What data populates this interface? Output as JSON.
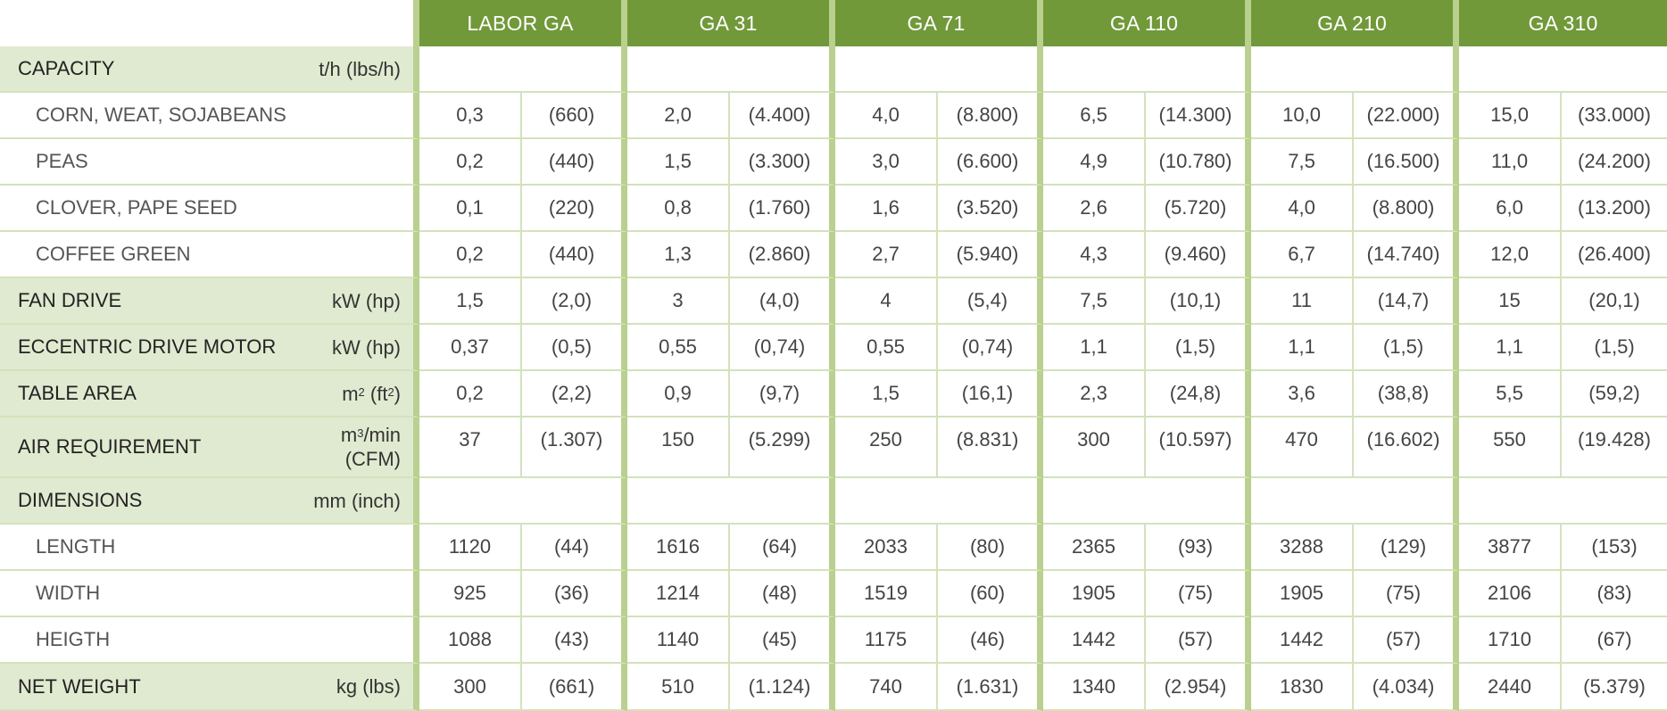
{
  "models": [
    "LABOR GA",
    "GA 31",
    "GA 71",
    "GA 110",
    "GA 210",
    "GA 310"
  ],
  "rows": [
    {
      "kind": "section",
      "label": "CAPACITY",
      "unit": "t/h (lbs/h)",
      "values": []
    },
    {
      "kind": "sub",
      "label": "CORN, WEAT, SOJABEANS",
      "unit": "",
      "values": [
        "0,3",
        "(660)",
        "2,0",
        "(4.400)",
        "4,0",
        "(8.800)",
        "6,5",
        "(14.300)",
        "10,0",
        "(22.000)",
        "15,0",
        "(33.000)"
      ]
    },
    {
      "kind": "sub",
      "label": "PEAS",
      "unit": "",
      "values": [
        "0,2",
        "(440)",
        "1,5",
        "(3.300)",
        "3,0",
        "(6.600)",
        "4,9",
        "(10.780)",
        "7,5",
        "(16.500)",
        "11,0",
        "(24.200)"
      ]
    },
    {
      "kind": "sub",
      "label": "CLOVER, PAPE SEED",
      "unit": "",
      "values": [
        "0,1",
        "(220)",
        "0,8",
        "(1.760)",
        "1,6",
        "(3.520)",
        "2,6",
        "(5.720)",
        "4,0",
        "(8.800)",
        "6,0",
        "(13.200)"
      ]
    },
    {
      "kind": "sub",
      "label": "COFFEE GREEN",
      "unit": "",
      "values": [
        "0,2",
        "(440)",
        "1,3",
        "(2.860)",
        "2,7",
        "(5.940)",
        "4,3",
        "(9.460)",
        "6,7",
        "(14.740)",
        "12,0",
        "(26.400)"
      ]
    },
    {
      "kind": "section",
      "label": "FAN DRIVE",
      "unit": "kW (hp)",
      "values": [
        "1,5",
        "(2,0)",
        "3",
        "(4,0)",
        "4",
        "(5,4)",
        "7,5",
        "(10,1)",
        "11",
        "(14,7)",
        "15",
        "(20,1)"
      ]
    },
    {
      "kind": "section",
      "label": "ECCENTRIC DRIVE MOTOR",
      "unit": "kW (hp)",
      "values": [
        "0,37",
        "(0,5)",
        "0,55",
        "(0,74)",
        "0,55",
        "(0,74)",
        "1,1",
        "(1,5)",
        "1,1",
        "(1,5)",
        "1,1",
        "(1,5)"
      ]
    },
    {
      "kind": "section",
      "label": "TABLE AREA",
      "unit": "m² (ft²)",
      "values": [
        "0,2",
        "(2,2)",
        "0,9",
        "(9,7)",
        "1,5",
        "(16,1)",
        "2,3",
        "(24,8)",
        "3,6",
        "(38,8)",
        "5,5",
        "(59,2)"
      ]
    },
    {
      "kind": "section",
      "label": "AIR REQUIREMENT",
      "unit": "m³/min (CFM)",
      "values": [
        "37",
        "(1.307)",
        "150",
        "(5.299)",
        "250",
        "(8.831)",
        "300",
        "(10.597)",
        "470",
        "(16.602)",
        "550",
        "(19.428)"
      ]
    },
    {
      "kind": "section",
      "label": "DIMENSIONS",
      "unit": "mm (inch)",
      "values": []
    },
    {
      "kind": "sub",
      "label": "LENGTH",
      "unit": "",
      "values": [
        "1120",
        "(44)",
        "1616",
        "(64)",
        "2033",
        "(80)",
        "2365",
        "(93)",
        "3288",
        "(129)",
        "3877",
        "(153)"
      ]
    },
    {
      "kind": "sub",
      "label": "WIDTH",
      "unit": "",
      "values": [
        "925",
        "(36)",
        "1214",
        "(48)",
        "1519",
        "(60)",
        "1905",
        "(75)",
        "1905",
        "(75)",
        "2106",
        "(83)"
      ]
    },
    {
      "kind": "sub",
      "label": "HEIGTH",
      "unit": "",
      "values": [
        "1088",
        "(43)",
        "1140",
        "(45)",
        "1175",
        "(46)",
        "1442",
        "(57)",
        "1442",
        "(57)",
        "1710",
        "(67)"
      ]
    },
    {
      "kind": "section",
      "label": "NET WEIGHT",
      "unit": "kg (lbs)",
      "values": [
        "300",
        "(661)",
        "510",
        "(1.124)",
        "740",
        "(1.631)",
        "1340",
        "(2.954)",
        "1830",
        "(4.034)",
        "2440",
        "(5.379)"
      ]
    }
  ]
}
